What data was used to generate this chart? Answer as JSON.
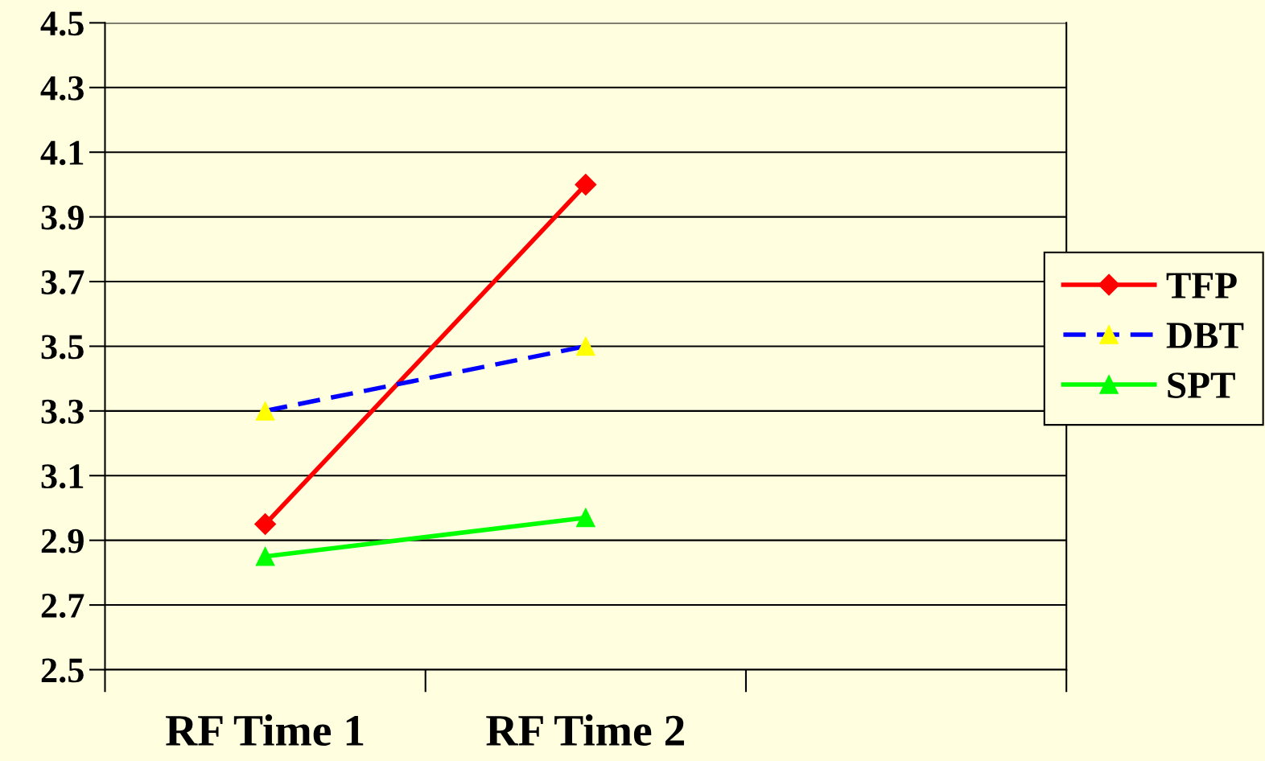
{
  "chart_data": {
    "type": "line",
    "categories": [
      "RF Time 1",
      "RF Time 2",
      null
    ],
    "series": [
      {
        "name": "TFP",
        "color": "#ff0000",
        "values": [
          2.95,
          4.0,
          null
        ],
        "marker": "diamond",
        "line_style": "solid"
      },
      {
        "name": "DBT",
        "color": "#0000ff",
        "values": [
          3.3,
          3.5,
          null
        ],
        "marker": "triangle",
        "line_style": "dashed"
      },
      {
        "name": "SPT",
        "color": "#00ff00",
        "values": [
          2.85,
          2.97,
          null
        ],
        "marker": "triangle",
        "line_style": "solid"
      }
    ],
    "ylim": [
      2.5,
      4.5
    ],
    "yticks": [
      2.5,
      2.7,
      2.9,
      3.1,
      3.3,
      3.5,
      3.7,
      3.9,
      4.1,
      4.3,
      4.5
    ],
    "grid": "y",
    "legend": "right"
  }
}
